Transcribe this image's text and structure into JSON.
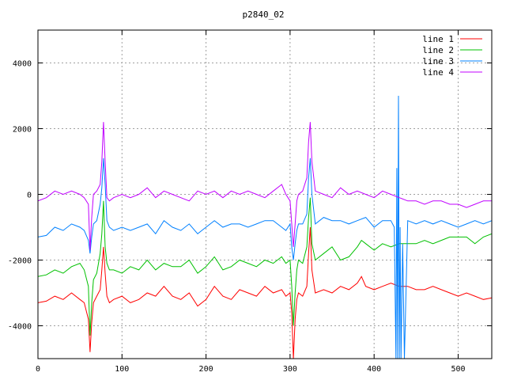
{
  "chart_data": {
    "type": "line",
    "title": "p2840_02",
    "xlabel": "",
    "ylabel": "",
    "xlim": [
      0,
      540
    ],
    "ylim": [
      -5000,
      5000
    ],
    "xticks": [
      0,
      100,
      200,
      300,
      400,
      500
    ],
    "yticks": [
      -4000,
      -2000,
      0,
      2000,
      4000
    ],
    "grid": true,
    "legend_position": "top-right",
    "series": [
      {
        "name": "line 1",
        "color": "#ff0000",
        "x": [
          0,
          10,
          20,
          30,
          40,
          50,
          55,
          60,
          62,
          64,
          66,
          70,
          74,
          76,
          78,
          80,
          82,
          85,
          90,
          100,
          110,
          120,
          130,
          140,
          150,
          160,
          170,
          180,
          190,
          200,
          210,
          220,
          230,
          240,
          250,
          260,
          270,
          280,
          290,
          295,
          300,
          302,
          304,
          306,
          308,
          310,
          315,
          320,
          322,
          324,
          326,
          330,
          340,
          350,
          360,
          370,
          380,
          385,
          390,
          400,
          410,
          420,
          430,
          440,
          450,
          460,
          470,
          480,
          490,
          500,
          510,
          520,
          530,
          540
        ],
        "y": [
          -3300,
          -3250,
          -3100,
          -3200,
          -3000,
          -3200,
          -3300,
          -3800,
          -4800,
          -3900,
          -3300,
          -3100,
          -2900,
          -2300,
          -1600,
          -2400,
          -3100,
          -3300,
          -3200,
          -3100,
          -3300,
          -3200,
          -3000,
          -3100,
          -2800,
          -3100,
          -3200,
          -3000,
          -3400,
          -3200,
          -2800,
          -3100,
          -3200,
          -2900,
          -3000,
          -3100,
          -2800,
          -3000,
          -2900,
          -3100,
          -3000,
          -3600,
          -5000,
          -3800,
          -3200,
          -3000,
          -3100,
          -2800,
          -1800,
          -1000,
          -2300,
          -3000,
          -2900,
          -3000,
          -2800,
          -2900,
          -2700,
          -2500,
          -2800,
          -2900,
          -2800,
          -2700,
          -2800,
          -2800,
          -2900,
          -2900,
          -2800,
          -2900,
          -3000,
          -3100,
          -3000,
          -3100,
          -3200,
          -3150
        ]
      },
      {
        "name": "line 2",
        "color": "#00c000",
        "x": [
          0,
          10,
          20,
          30,
          40,
          50,
          55,
          60,
          62,
          64,
          66,
          70,
          74,
          76,
          78,
          80,
          82,
          85,
          90,
          100,
          110,
          120,
          130,
          140,
          150,
          160,
          170,
          180,
          190,
          200,
          210,
          220,
          230,
          240,
          250,
          260,
          270,
          280,
          290,
          295,
          300,
          302,
          304,
          306,
          308,
          310,
          315,
          320,
          322,
          324,
          326,
          330,
          340,
          350,
          360,
          370,
          380,
          385,
          390,
          400,
          410,
          420,
          430,
          440,
          450,
          460,
          470,
          480,
          490,
          500,
          510,
          520,
          530,
          540
        ],
        "y": [
          -2500,
          -2450,
          -2300,
          -2400,
          -2200,
          -2100,
          -2300,
          -2800,
          -4300,
          -3300,
          -2600,
          -2400,
          -1800,
          -1200,
          -200,
          -1600,
          -2100,
          -2300,
          -2300,
          -2400,
          -2200,
          -2300,
          -2000,
          -2300,
          -2100,
          -2200,
          -2200,
          -2000,
          -2400,
          -2200,
          -1900,
          -2300,
          -2200,
          -2000,
          -2100,
          -2200,
          -2000,
          -2100,
          -1900,
          -2100,
          -2000,
          -2800,
          -4000,
          -3000,
          -2300,
          -2000,
          -2100,
          -1600,
          -700,
          -100,
          -1500,
          -2000,
          -1800,
          -1600,
          -2000,
          -1900,
          -1600,
          -1400,
          -1500,
          -1700,
          -1500,
          -1600,
          -1500,
          -1500,
          -1500,
          -1400,
          -1500,
          -1400,
          -1300,
          -1300,
          -1300,
          -1500,
          -1300,
          -1200
        ]
      },
      {
        "name": "line 3",
        "color": "#0080ff",
        "x": [
          0,
          10,
          20,
          30,
          40,
          50,
          55,
          60,
          62,
          64,
          66,
          70,
          74,
          76,
          78,
          80,
          82,
          85,
          90,
          100,
          110,
          120,
          130,
          140,
          150,
          160,
          170,
          180,
          190,
          200,
          210,
          220,
          230,
          240,
          250,
          260,
          270,
          280,
          290,
          295,
          300,
          302,
          304,
          306,
          308,
          310,
          315,
          320,
          322,
          324,
          326,
          330,
          340,
          350,
          360,
          370,
          380,
          390,
          400,
          410,
          420,
          424,
          426,
          427,
          428,
          429,
          430,
          431,
          432,
          434,
          436,
          440,
          450,
          460,
          470,
          480,
          490,
          500,
          510,
          520,
          530,
          540
        ],
        "y": [
          -1300,
          -1250,
          -1000,
          -1100,
          -900,
          -1000,
          -1100,
          -1400,
          -1800,
          -1300,
          -900,
          -800,
          -300,
          200,
          1100,
          300,
          -800,
          -1000,
          -1100,
          -1000,
          -1100,
          -1000,
          -900,
          -1200,
          -800,
          -1000,
          -1100,
          -900,
          -1200,
          -1000,
          -800,
          -1000,
          -900,
          -900,
          -1000,
          -900,
          -800,
          -800,
          -1000,
          -1100,
          -900,
          -1600,
          -2000,
          -1500,
          -1100,
          -900,
          -900,
          -600,
          500,
          1100,
          0,
          -900,
          -700,
          -800,
          -800,
          -900,
          -800,
          -700,
          -1000,
          -800,
          -800,
          -1000,
          -5000,
          800,
          -5000,
          3000,
          -5000,
          -1000,
          -5000,
          -1500,
          -5000,
          -800,
          -900,
          -800,
          -900,
          -800,
          -900,
          -1000,
          -900,
          -800,
          -900,
          -800
        ]
      },
      {
        "name": "line 4",
        "color": "#c000ff",
        "x": [
          0,
          10,
          20,
          30,
          40,
          50,
          55,
          60,
          62,
          64,
          66,
          70,
          74,
          76,
          78,
          80,
          82,
          85,
          90,
          100,
          110,
          120,
          130,
          140,
          150,
          160,
          170,
          180,
          190,
          200,
          210,
          220,
          230,
          240,
          250,
          260,
          270,
          280,
          290,
          295,
          300,
          302,
          304,
          306,
          308,
          310,
          315,
          320,
          322,
          324,
          326,
          330,
          340,
          350,
          360,
          370,
          380,
          390,
          400,
          410,
          420,
          430,
          440,
          450,
          460,
          470,
          480,
          490,
          500,
          510,
          520,
          530,
          540
        ],
        "y": [
          -200,
          -100,
          100,
          0,
          100,
          0,
          -100,
          -300,
          -1700,
          -700,
          0,
          100,
          300,
          1000,
          2200,
          1000,
          -100,
          -200,
          -100,
          0,
          -100,
          0,
          200,
          -100,
          100,
          0,
          -100,
          -200,
          100,
          0,
          100,
          -100,
          100,
          0,
          100,
          0,
          -100,
          100,
          300,
          0,
          -200,
          -900,
          -1600,
          -900,
          -200,
          0,
          100,
          500,
          1600,
          2200,
          1000,
          100,
          0,
          -100,
          200,
          0,
          100,
          0,
          -100,
          100,
          0,
          -100,
          -200,
          -200,
          -300,
          -200,
          -200,
          -300,
          -300,
          -400,
          -300,
          -200,
          -200
        ]
      }
    ]
  }
}
